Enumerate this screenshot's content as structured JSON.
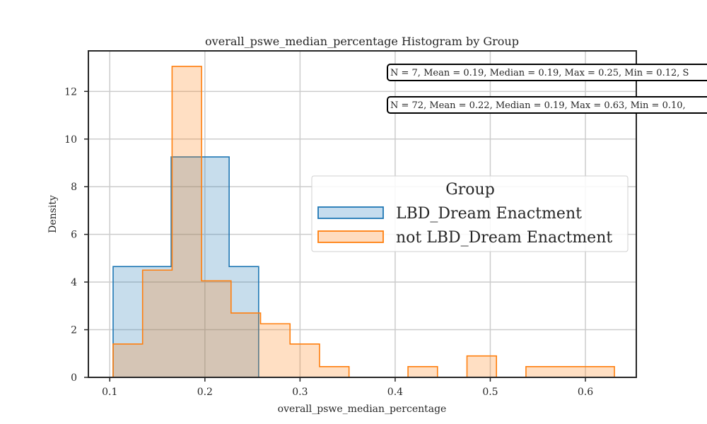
{
  "chart_data": {
    "type": "histogram",
    "title": "overall_pswe_median_percentage Histogram by Group",
    "xlabel": "overall_pswe_median_percentage",
    "ylabel": "Density",
    "xlim": [
      0.0775,
      0.6535
    ],
    "ylim": [
      0,
      13.7
    ],
    "x_ticks": [
      0.1,
      0.2,
      0.3,
      0.4,
      0.5,
      0.6
    ],
    "x_tick_labels": [
      "0.1",
      "0.2",
      "0.3",
      "0.4",
      "0.5",
      "0.6"
    ],
    "y_ticks": [
      0,
      2,
      4,
      6,
      8,
      10,
      12
    ],
    "y_tick_labels": [
      "0",
      "2",
      "4",
      "6",
      "8",
      "10",
      "12"
    ],
    "grid": true,
    "legend": {
      "title": "Group",
      "placement": "center-right"
    },
    "series": [
      {
        "name": "LBD_Dream Enactment",
        "color": "#1f77b4",
        "fill": "#c5dcee",
        "bin_edges": [
          0.1035,
          0.1645,
          0.2255,
          0.2565
        ],
        "densities": [
          4.65,
          9.25,
          4.65
        ],
        "stats": "N = 7, Mean = 0.19, Median = 0.19, Max = 0.25, Min = 0.12, S"
      },
      {
        "name": "not LBD_Dream Enactment",
        "color": "#ff7f0e",
        "fill": "#ffdcbf",
        "bin_edges": [
          0.1035,
          0.1345,
          0.1655,
          0.1965,
          0.2275,
          0.2585,
          0.2895,
          0.3205,
          0.3515,
          0.3825,
          0.4135,
          0.4445,
          0.4755,
          0.5065,
          0.5375,
          0.5685,
          0.5995,
          0.6305
        ],
        "densities": [
          1.4,
          4.5,
          13.05,
          4.05,
          2.7,
          2.25,
          1.4,
          0.45,
          0,
          0,
          0.45,
          0,
          0.9,
          0,
          0.45,
          0.45,
          0.45
        ],
        "stats": "N = 72, Mean = 0.22, Median = 0.19, Max = 0.63, Min = 0.10,"
      }
    ]
  }
}
